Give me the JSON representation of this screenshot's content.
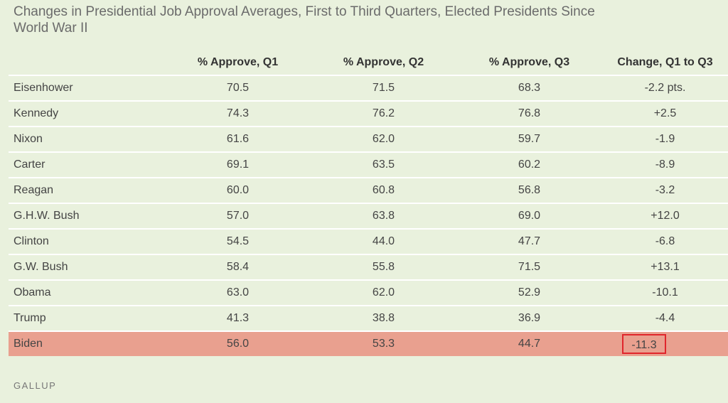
{
  "title": "Changes in Presidential Job Approval Averages, First to Third Quarters, Elected Presidents Since World War II",
  "source": "GALLUP",
  "colors": {
    "background": "#e9f1dd",
    "highlight_row": "#e9a08f",
    "highlight_box": "#e0262c"
  },
  "chart_data": {
    "type": "table",
    "columns": [
      "",
      "% Approve, Q1",
      "% Approve, Q2",
      "% Approve, Q3",
      "Change, Q1 to Q3"
    ],
    "rows": [
      {
        "president": "Eisenhower",
        "q1": "70.5",
        "q2": "71.5",
        "q3": "68.3",
        "change": "-2.2 pts."
      },
      {
        "president": "Kennedy",
        "q1": "74.3",
        "q2": "76.2",
        "q3": "76.8",
        "change": "+2.5"
      },
      {
        "president": "Nixon",
        "q1": "61.6",
        "q2": "62.0",
        "q3": "59.7",
        "change": "-1.9"
      },
      {
        "president": "Carter",
        "q1": "69.1",
        "q2": "63.5",
        "q3": "60.2",
        "change": "-8.9"
      },
      {
        "president": "Reagan",
        "q1": "60.0",
        "q2": "60.8",
        "q3": "56.8",
        "change": "-3.2"
      },
      {
        "president": "G.H.W. Bush",
        "q1": "57.0",
        "q2": "63.8",
        "q3": "69.0",
        "change": "+12.0"
      },
      {
        "president": "Clinton",
        "q1": "54.5",
        "q2": "44.0",
        "q3": "47.7",
        "change": "-6.8"
      },
      {
        "president": "G.W. Bush",
        "q1": "58.4",
        "q2": "55.8",
        "q3": "71.5",
        "change": "+13.1"
      },
      {
        "president": "Obama",
        "q1": "63.0",
        "q2": "62.0",
        "q3": "52.9",
        "change": "-10.1"
      },
      {
        "president": "Trump",
        "q1": "41.3",
        "q2": "38.8",
        "q3": "36.9",
        "change": "-4.4"
      },
      {
        "president": "Biden",
        "q1": "56.0",
        "q2": "53.3",
        "q3": "44.7",
        "change": "-11.3",
        "highlight": true
      }
    ]
  }
}
